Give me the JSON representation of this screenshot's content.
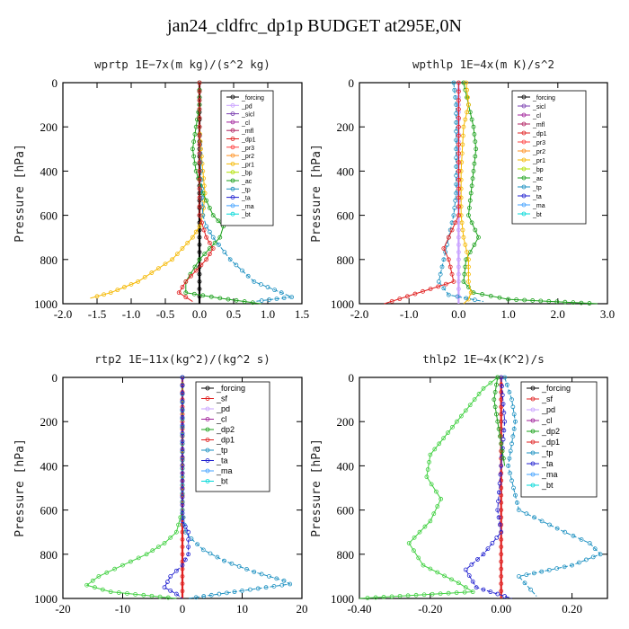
{
  "title": "jan24_cldfrc_dp1p  BUDGET at295E,0N",
  "chart_data": [
    {
      "type": "line",
      "title": "wprtp   1E−7x(m kg)/(s^2 kg)",
      "ylabel": "Pressure [hPa]",
      "xlim": [
        -2.0,
        1.5
      ],
      "ylim": [
        1000,
        0
      ],
      "xticks": [
        -2.0,
        -1.5,
        -1.0,
        -0.5,
        0.0,
        0.5,
        1.0,
        1.5
      ],
      "xticklabels": [
        "-2.0",
        "-1.5",
        "-1.0",
        "-0.5",
        "0.0",
        "0.5",
        "1.0",
        "1.5"
      ],
      "yticks": [
        0,
        200,
        400,
        600,
        800,
        1000
      ],
      "legend_position": "top-right",
      "legend": [
        "_forcing",
        "_pd",
        "_sicl",
        "_cl",
        "_mfl",
        "_dp1",
        "_pr3",
        "_pr2",
        "_pr1",
        "_bp",
        "_ac",
        "_tp",
        "_ta",
        "_ma",
        "_bt"
      ],
      "series": [
        {
          "name": "_forcing",
          "color": "#000000",
          "x": [
            0,
            0,
            0,
            0,
            0,
            0,
            0,
            0,
            0,
            0,
            0
          ],
          "y": [
            0,
            100,
            200,
            300,
            400,
            500,
            600,
            700,
            800,
            900,
            1000
          ]
        },
        {
          "name": "_pr1",
          "color": "#f5b800",
          "x": [
            0,
            0,
            0.02,
            0.05,
            0.08,
            0.05,
            0.0,
            -0.1,
            -0.4,
            -0.9,
            -1.3,
            -1.6
          ],
          "y": [
            0,
            200,
            300,
            400,
            500,
            600,
            650,
            700,
            800,
            900,
            950,
            975
          ]
        },
        {
          "name": "_ac",
          "color": "#1aa01a",
          "x": [
            0,
            0,
            -0.05,
            -0.1,
            -0.05,
            0.05,
            0.2,
            0.35,
            0.3,
            0.0,
            -0.2,
            -0.2,
            0.3,
            0.9
          ],
          "y": [
            0,
            100,
            200,
            300,
            400,
            500,
            600,
            650,
            700,
            800,
            900,
            950,
            975,
            1000
          ]
        },
        {
          "name": "_tp",
          "color": "#1a8fc0",
          "x": [
            0,
            0,
            0.02,
            0.05,
            0.1,
            0.2,
            0.45,
            0.8,
            1.2,
            1.35,
            0.8
          ],
          "y": [
            0,
            200,
            400,
            600,
            650,
            700,
            800,
            900,
            950,
            970,
            990
          ]
        },
        {
          "name": "_dp1",
          "color": "#e02020",
          "x": [
            0,
            0,
            0,
            0,
            0.1,
            0.2,
            0.1,
            -0.05,
            -0.2,
            -0.3,
            -0.1
          ],
          "y": [
            0,
            200,
            400,
            600,
            700,
            750,
            800,
            850,
            900,
            950,
            990
          ]
        }
      ]
    },
    {
      "type": "line",
      "title": "wpthlp   1E−4x(m K)/s^2",
      "ylabel": "Pressure [hPa]",
      "xlim": [
        -2.0,
        3.0
      ],
      "ylim": [
        1000,
        0
      ],
      "xticks": [
        -2.0,
        -1.0,
        0.0,
        1.0,
        2.0,
        3.0
      ],
      "xticklabels": [
        "-2.0",
        "-1.0",
        "0.0",
        "1.0",
        "2.0",
        "3.0"
      ],
      "yticks": [
        0,
        200,
        400,
        600,
        800,
        1000
      ],
      "legend_position": "top-right",
      "legend": [
        "_forcing",
        "_sicl",
        "_cl",
        "_mfl",
        "_dp1",
        "_pr3",
        "_pr2",
        "_pr1",
        "_bp",
        "_ac",
        "_tp",
        "_ta",
        "_ma",
        "_bt"
      ],
      "series": [
        {
          "name": "_forcing",
          "color": "#c8a0ff",
          "x": [
            0,
            0,
            0,
            0,
            0,
            0,
            0,
            0,
            0,
            0,
            0
          ],
          "y": [
            0,
            100,
            200,
            300,
            400,
            500,
            600,
            700,
            800,
            900,
            1000
          ]
        },
        {
          "name": "_ac",
          "color": "#1aa01a",
          "x": [
            0.1,
            0.2,
            0.3,
            0.35,
            0.3,
            0.25,
            0.2,
            0.4,
            0.15,
            0.1,
            0.3,
            1.0,
            2.8
          ],
          "y": [
            0,
            100,
            200,
            300,
            400,
            500,
            600,
            700,
            800,
            900,
            950,
            980,
            1000
          ]
        },
        {
          "name": "_pr1",
          "color": "#f5b800",
          "x": [
            0.15,
            0.2,
            0.1,
            0.05,
            0.05,
            0.1,
            0.2,
            0.2,
            0.25,
            0.2,
            0.1
          ],
          "y": [
            0,
            100,
            200,
            400,
            600,
            700,
            800,
            900,
            950,
            980,
            1000
          ]
        },
        {
          "name": "_tp",
          "color": "#1a8fc0",
          "x": [
            -0.1,
            -0.05,
            -0.05,
            -0.05,
            -0.1,
            -0.2,
            -0.3,
            -0.4,
            -0.2,
            0.5
          ],
          "y": [
            0,
            100,
            300,
            500,
            600,
            700,
            800,
            900,
            960,
            990
          ]
        },
        {
          "name": "_dp1",
          "color": "#e02020",
          "x": [
            0,
            0,
            0,
            0,
            -0.2,
            -0.3,
            -0.2,
            -0.1,
            -1.5
          ],
          "y": [
            0,
            200,
            400,
            600,
            700,
            750,
            800,
            900,
            1000
          ]
        }
      ]
    },
    {
      "type": "line",
      "title": "rtp2   1E−11x(kg^2)/(kg^2 s)",
      "ylabel": "Pressure [hPa]",
      "xlim": [
        -20,
        20
      ],
      "ylim": [
        1000,
        0
      ],
      "xticks": [
        -20,
        -10,
        0,
        10,
        20
      ],
      "xticklabels": [
        "-20",
        "-10",
        "0",
        "10",
        "20"
      ],
      "yticks": [
        0,
        200,
        400,
        600,
        800,
        1000
      ],
      "legend_position": "top-right",
      "legend": [
        "_forcing",
        "_sf",
        "_pd",
        "_cl",
        "_dp2",
        "_dp1",
        "_tp",
        "_ta",
        "_ma",
        "_bt"
      ],
      "series": [
        {
          "name": "_forcing",
          "color": "#e02020",
          "x": [
            0,
            0,
            0,
            0,
            0,
            0,
            0,
            0,
            0,
            0,
            0
          ],
          "y": [
            0,
            100,
            200,
            300,
            400,
            500,
            600,
            700,
            800,
            900,
            1000
          ]
        },
        {
          "name": "_dp1",
          "color": "#40d040",
          "x": [
            0,
            0,
            -1,
            -3,
            -6,
            -10,
            -14,
            -16,
            -12,
            -1
          ],
          "y": [
            0,
            600,
            700,
            750,
            800,
            850,
            900,
            940,
            970,
            1000
          ]
        },
        {
          "name": "_tp",
          "color": "#1a8fc0",
          "x": [
            0,
            0,
            0.5,
            1.5,
            3.5,
            7,
            12,
            17,
            18,
            10,
            1
          ],
          "y": [
            0,
            600,
            700,
            730,
            780,
            830,
            880,
            920,
            935,
            965,
            1000
          ]
        },
        {
          "name": "_ta",
          "color": "#2020d0",
          "x": [
            0,
            0,
            1,
            1,
            0,
            -2,
            -3,
            -1,
            0
          ],
          "y": [
            0,
            650,
            700,
            800,
            850,
            900,
            950,
            980,
            1000
          ]
        }
      ]
    },
    {
      "type": "line",
      "title": "thlp2   1E−4x(K^2)/s",
      "ylabel": "Pressure [hPa]",
      "xlim": [
        -0.4,
        0.3
      ],
      "ylim": [
        1000,
        0
      ],
      "xticks": [
        -0.4,
        -0.2,
        0.0,
        0.2
      ],
      "xticklabels": [
        "-0.40",
        "-0.20",
        "0.00",
        "0.20"
      ],
      "yticks": [
        0,
        200,
        400,
        600,
        800,
        1000
      ],
      "legend_position": "top-right",
      "legend": [
        "_forcing",
        "_sf",
        "_pd",
        "_cl",
        "_dp2",
        "_dp1",
        "_tp",
        "_ta",
        "_ma",
        "_bt"
      ],
      "series": [
        {
          "name": "_forcing",
          "color": "#e02020",
          "x": [
            0,
            0,
            0,
            0,
            0,
            0,
            0,
            0,
            0,
            0,
            0
          ],
          "y": [
            0,
            100,
            200,
            300,
            400,
            500,
            600,
            700,
            800,
            900,
            1000
          ]
        },
        {
          "name": "_dp1",
          "color": "#40d040",
          "x": [
            -0.01,
            -0.05,
            -0.1,
            -0.15,
            -0.2,
            -0.21,
            -0.17,
            -0.2,
            -0.26,
            -0.22,
            -0.12,
            -0.08,
            -0.4
          ],
          "y": [
            0,
            50,
            150,
            250,
            350,
            450,
            550,
            650,
            750,
            850,
            930,
            970,
            1000
          ]
        },
        {
          "name": "_tp",
          "color": "#1a8fc0",
          "x": [
            0.01,
            0.03,
            0.04,
            0.03,
            0.02,
            0.05,
            0.18,
            0.25,
            0.28,
            0.2,
            0.05,
            0.1
          ],
          "y": [
            0,
            100,
            200,
            300,
            400,
            600,
            700,
            750,
            800,
            850,
            900,
            990
          ]
        },
        {
          "name": "_ta",
          "color": "#2020d0",
          "x": [
            0,
            0.01,
            0,
            -0.01,
            0,
            -0.05,
            -0.1,
            -0.07,
            0.03
          ],
          "y": [
            0,
            200,
            400,
            600,
            700,
            800,
            870,
            950,
            1000
          ]
        },
        {
          "name": "_dp2",
          "color": "#1aa01a",
          "x": [
            -0.01,
            -0.02,
            -0.01,
            0,
            0.01
          ],
          "y": [
            0,
            100,
            200,
            300,
            400
          ]
        }
      ]
    }
  ]
}
